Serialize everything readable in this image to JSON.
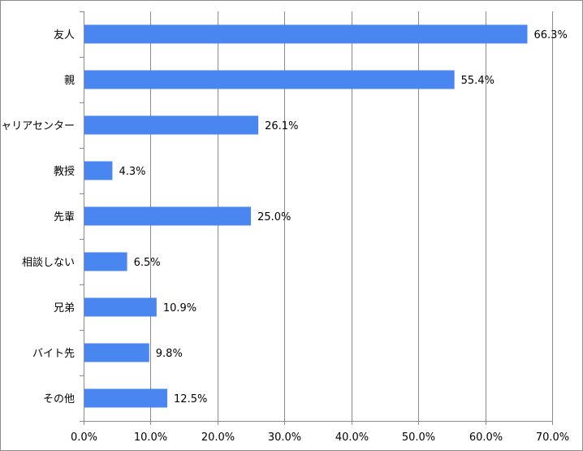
{
  "chart_data": {
    "type": "bar",
    "orientation": "horizontal",
    "categories": [
      "友人",
      "親",
      "キャリアセンター",
      "教授",
      "先輩",
      "相談しない",
      "兄弟",
      "バイト先",
      "その他"
    ],
    "values": [
      66.3,
      55.4,
      26.1,
      4.3,
      25.0,
      6.5,
      10.9,
      9.8,
      12.5
    ],
    "value_labels": [
      "66.3%",
      "55.4%",
      "26.1%",
      "4.3%",
      "25.0%",
      "6.5%",
      "10.9%",
      "9.8%",
      "12.5%"
    ],
    "xlim": [
      0,
      70
    ],
    "x_ticks": [
      0,
      10,
      20,
      30,
      40,
      50,
      60,
      70
    ],
    "x_tick_labels": [
      "0.0%",
      "10.0%",
      "20.0%",
      "30.0%",
      "40.0%",
      "50.0%",
      "60.0%",
      "70.0%"
    ],
    "grid": "vertical",
    "legend": "none",
    "colors": {
      "bar": "#4a86f0",
      "grid": "#8c8c8c",
      "axis": "#8c8c8c"
    }
  }
}
